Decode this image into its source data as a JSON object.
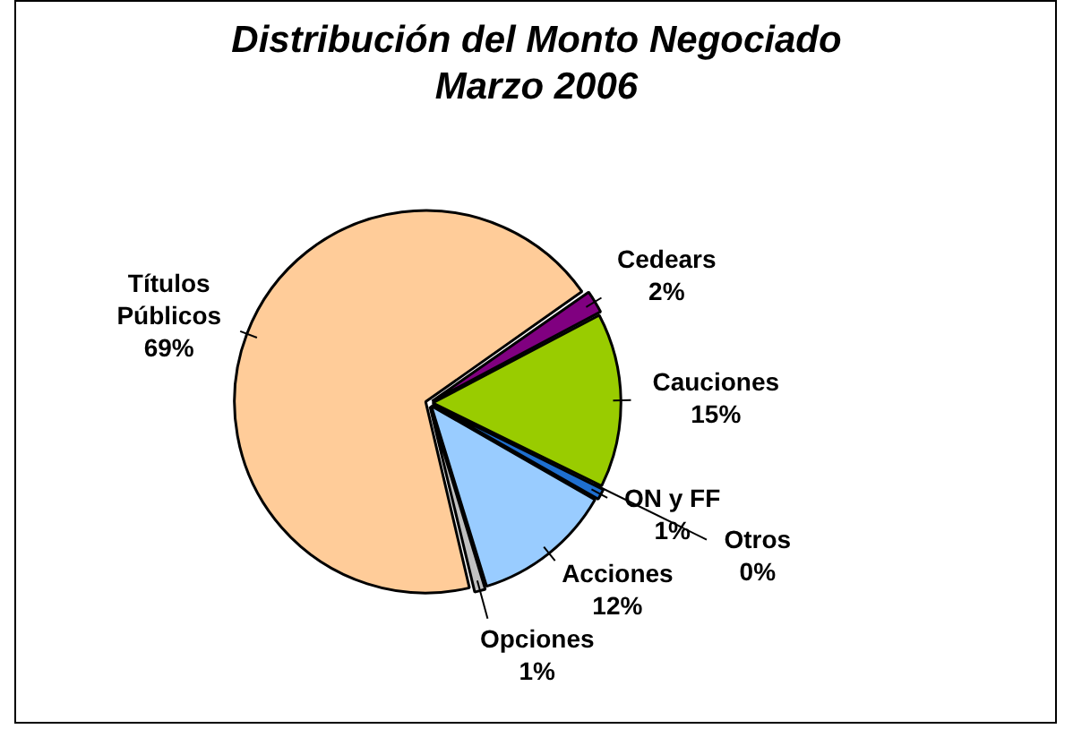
{
  "chart_data": {
    "type": "pie",
    "title": "Distribución del Monto Negociado Marzo 2006",
    "categories": [
      "Cedears",
      "Cauciones",
      "Otros",
      "ON y FF",
      "Acciones",
      "Opciones",
      "Títulos Públicos"
    ],
    "values": [
      2,
      15,
      0,
      1,
      12,
      1,
      69
    ],
    "colors": [
      "#800080",
      "#99cc00",
      "#1f5fbf",
      "#1f6fd0",
      "#99ccff",
      "#c0c0c0",
      "#ffcc99"
    ],
    "value_labels": [
      "2%",
      "15%",
      "0%",
      "1%",
      "12%",
      "1%",
      "69%"
    ]
  }
}
